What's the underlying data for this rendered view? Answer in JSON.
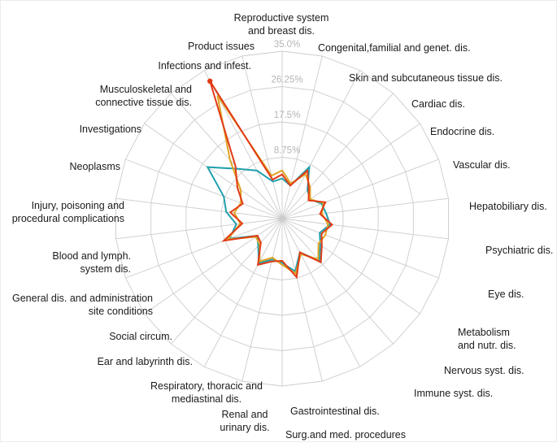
{
  "chart_data": {
    "type": "radar",
    "title": "",
    "unit": "%",
    "direction": "clockwise-from-top",
    "categories": [
      "Reproductive system\nand breast dis.",
      "Congenital,familial and genet. dis.",
      "Skin and subcutaneous tissue dis.",
      "Cardiac dis.",
      "Endocrine dis.",
      "Vascular dis.",
      "Hepatobiliary dis.",
      "Psychiatric dis.",
      "Eye dis.",
      "Metabolism\nand nutr. dis.",
      "Nervous syst. dis.",
      "Immune syst. dis.",
      "Gastrointestinal dis.",
      "Surg.and med. procedures",
      "Renal and\nurinary dis.",
      "Respiratory, thoracic and\nmediastinal dis.",
      "Ear and labyrinth dis.",
      "Social circum.",
      "General dis. and administration\nsite conditions",
      "Blood and lymph.\nsystem dis.",
      "Injury, poisoning and\nprocedural complications",
      "Neoplasms",
      "Investigations",
      "Musculoskeletal and\nconnective tissue dis.",
      "Infections and infest.",
      "Product issues"
    ],
    "radial_axis": {
      "ticks": [
        8.75,
        17.5,
        26.25,
        35.0
      ],
      "tick_labels": [
        "8.75%",
        "17.5%",
        "26.25%",
        "35.0%"
      ],
      "min": 0,
      "max": 35.0
    },
    "series": [
      {
        "name": "series-red",
        "color": "#e13b16",
        "values": [
          4.5,
          2,
          7,
          3.5,
          1.5,
          5,
          3,
          6,
          4,
          5.5,
          8,
          3,
          8.5,
          4,
          4.5,
          6.5,
          1.5,
          1,
          9,
          3.5,
          6.5,
          4,
          7,
          11,
          32,
          3.5
        ]
      },
      {
        "name": "series-gold",
        "color": "#e0a426",
        "values": [
          5.5,
          2.5,
          6,
          4,
          2,
          4.5,
          3.5,
          5,
          5,
          4.5,
          7,
          3.5,
          7.5,
          5,
          3.5,
          5.5,
          2,
          1.5,
          8,
          4,
          5.5,
          4.5,
          6,
          13,
          28,
          4.5
        ]
      },
      {
        "name": "series-teal",
        "color": "#1fa0ad",
        "values": [
          3.5,
          2,
          8,
          3,
          2,
          4,
          4.5,
          5.5,
          3.5,
          5,
          7.5,
          3,
          7,
          4.5,
          4,
          6,
          2.5,
          1,
          7.5,
          5,
          7.5,
          9,
          16,
          10,
          7,
          3
        ]
      }
    ],
    "grid": true,
    "legend": "none"
  },
  "style": {
    "background": "#ffffff",
    "grid_color": "#cccccc",
    "tick_label_color": "#b5b5b5",
    "category_label_color": "#1a1a1a"
  }
}
